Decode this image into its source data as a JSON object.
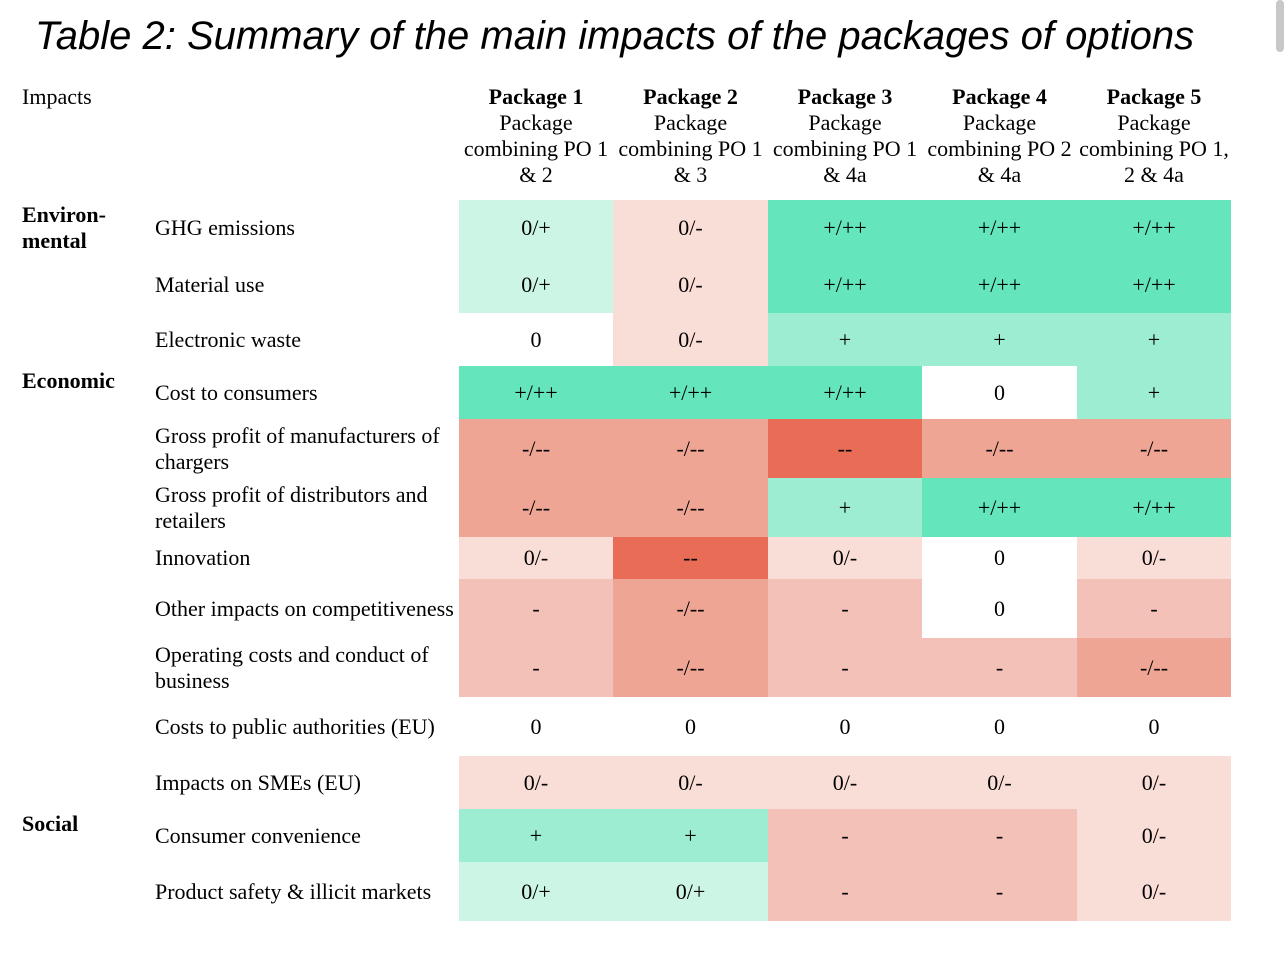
{
  "title": "Table 2: Summary of the main impacts of the packages of options",
  "header": {
    "impacts_label": "Impacts",
    "packages": [
      {
        "name": "Package 1",
        "desc": "Package combining PO 1 & 2"
      },
      {
        "name": "Package 2",
        "desc": "Package combining PO 1 & 3"
      },
      {
        "name": "Package 3",
        "desc": "Package combining PO 1 & 4a"
      },
      {
        "name": "Package 4",
        "desc": "Package combining PO 2 & 4a"
      },
      {
        "name": "Package 5",
        "desc": "Package combining PO 1, 2 & 4a"
      }
    ]
  },
  "categories": {
    "environmental": "Environ-mental",
    "economic": "Economic",
    "social": "Social"
  },
  "rows": [
    {
      "label": "GHG emissions",
      "values": [
        "0/+",
        "0/-",
        "+/++",
        "+/++",
        "+/++"
      ]
    },
    {
      "label": "Material use",
      "values": [
        "0/+",
        "0/-",
        "+/++",
        "+/++",
        "+/++"
      ]
    },
    {
      "label": "Electronic waste",
      "values": [
        "0",
        "0/-",
        "+",
        "+",
        "+"
      ]
    },
    {
      "label": "Cost to consumers",
      "values": [
        "+/++",
        "+/++",
        "+/++",
        "0",
        "+"
      ]
    },
    {
      "label": "Gross profit of manufacturers of chargers",
      "values": [
        "-/--",
        "-/--",
        "--",
        "-/--",
        "-/--"
      ]
    },
    {
      "label": "Gross profit of distributors and retailers",
      "values": [
        "-/--",
        "-/--",
        "+",
        "+/++",
        "+/++"
      ]
    },
    {
      "label": "Innovation",
      "values": [
        "0/-",
        "--",
        "0/-",
        "0",
        "0/-"
      ]
    },
    {
      "label": "Other impacts on competitiveness",
      "values": [
        "-",
        "-/--",
        "-",
        "0",
        "-"
      ]
    },
    {
      "label": "Operating costs and conduct of business",
      "values": [
        "-",
        "-/--",
        "-",
        "-",
        "-/--"
      ]
    },
    {
      "label": "Costs to public authorities (EU)",
      "values": [
        "0",
        "0",
        "0",
        "0",
        "0"
      ]
    },
    {
      "label": "Impacts on SMEs (EU)",
      "values": [
        "0/-",
        "0/-",
        "0/-",
        "0/-",
        "0/-"
      ]
    },
    {
      "label": "Consumer convenience",
      "values": [
        "+",
        "+",
        "-",
        "-",
        "0/-"
      ]
    },
    {
      "label": "Product safety & illicit markets",
      "values": [
        "0/+",
        "0/+",
        "-",
        "-",
        "0/-"
      ]
    }
  ],
  "colors": {
    "light_green": "#ccf5e6",
    "medium_green": "#9cedd2",
    "strong_green": "#64e5bc",
    "light_red": "#f9ddd7",
    "medium_red": "#f4c1b8",
    "strong_red": "#eea594",
    "very_strong_red": "#e86c56",
    "neutral": "#ffffff"
  }
}
